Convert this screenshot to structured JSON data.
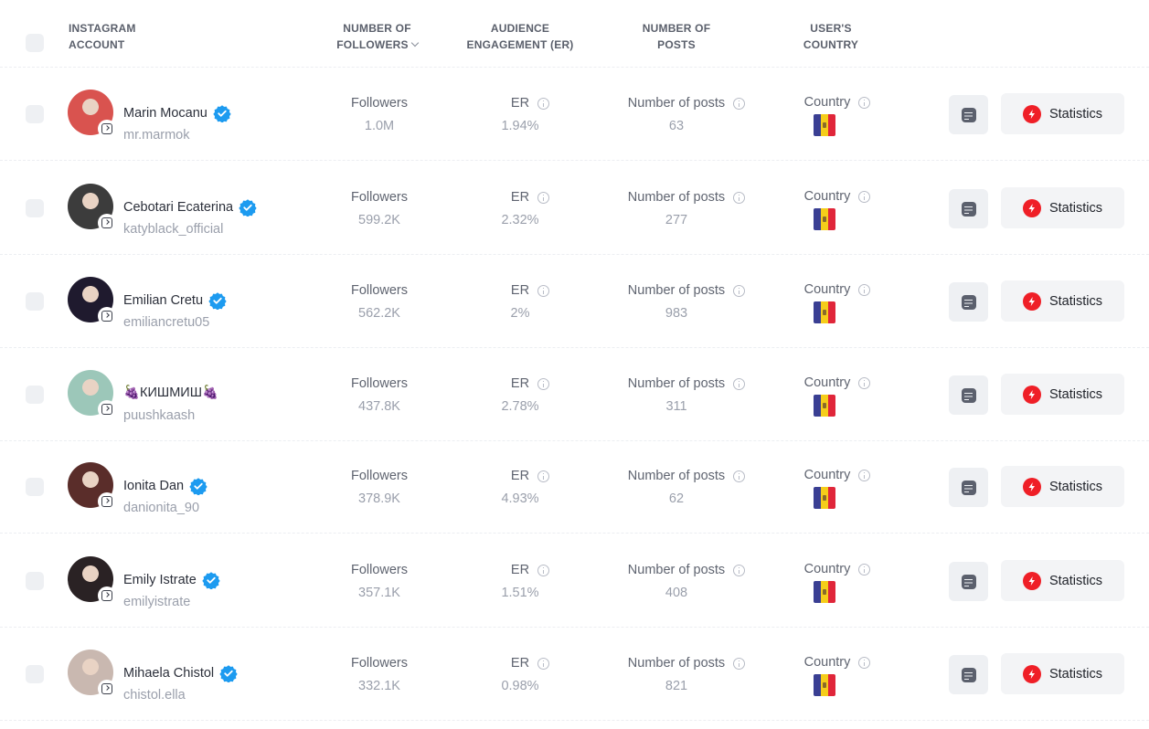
{
  "header": {
    "account_line1": "INSTAGRAM",
    "account_line2": "ACCOUNT",
    "followers_line1": "NUMBER OF",
    "followers_line2": "FOLLOWERS",
    "er_line1": "AUDIENCE",
    "er_line2": "ENGAGEMENT (ER)",
    "posts_line1": "NUMBER OF",
    "posts_line2": "POSTS",
    "country_line1": "USER'S",
    "country_line2": "COUNTRY"
  },
  "labels": {
    "followers": "Followers",
    "er": "ER",
    "posts": "Number of posts",
    "country": "Country",
    "statistics": "Statistics"
  },
  "colors": {
    "verified": "#1d9bf0",
    "bolt": "#ef1f27",
    "flag_blue": "#3a3f93",
    "flag_yellow": "#f5cd1a",
    "flag_red": "#e0263a"
  },
  "rows": [
    {
      "name": "Marin Mocanu",
      "handle": "mr.marmok",
      "verified": true,
      "followers": "1.0M",
      "er": "1.94%",
      "posts": "63",
      "country_flag": "moldova-flag-icon",
      "avatar_color": "#d9534f"
    },
    {
      "name": "Cebotari Ecaterina",
      "handle": "katyblack_official",
      "verified": true,
      "followers": "599.2K",
      "er": "2.32%",
      "posts": "277",
      "country_flag": "moldova-flag-icon",
      "avatar_color": "#3c3c3c"
    },
    {
      "name": "Emilian Cretu",
      "handle": "emiliancretu05",
      "verified": true,
      "followers": "562.2K",
      "er": "2%",
      "posts": "983",
      "country_flag": "moldova-flag-icon",
      "avatar_color": "#1f1a2e"
    },
    {
      "name": "🍇КИШМИШ🍇",
      "handle": "puushkaash",
      "verified": false,
      "followers": "437.8K",
      "er": "2.78%",
      "posts": "311",
      "country_flag": "moldova-flag-icon",
      "avatar_color": "#9cc7b9"
    },
    {
      "name": "Ionita Dan",
      "handle": "danionita_90",
      "verified": true,
      "followers": "378.9K",
      "er": "4.93%",
      "posts": "62",
      "country_flag": "moldova-flag-icon",
      "avatar_color": "#5a2d2a"
    },
    {
      "name": "Emily Istrate",
      "handle": "emilyistrate",
      "verified": true,
      "followers": "357.1K",
      "er": "1.51%",
      "posts": "408",
      "country_flag": "moldova-flag-icon",
      "avatar_color": "#2a2224"
    },
    {
      "name": "Mihaela Chistol",
      "handle": "chistol.ella",
      "verified": true,
      "followers": "332.1K",
      "er": "0.98%",
      "posts": "821",
      "country_flag": "moldova-flag-icon",
      "avatar_color": "#c9b8b0"
    }
  ]
}
